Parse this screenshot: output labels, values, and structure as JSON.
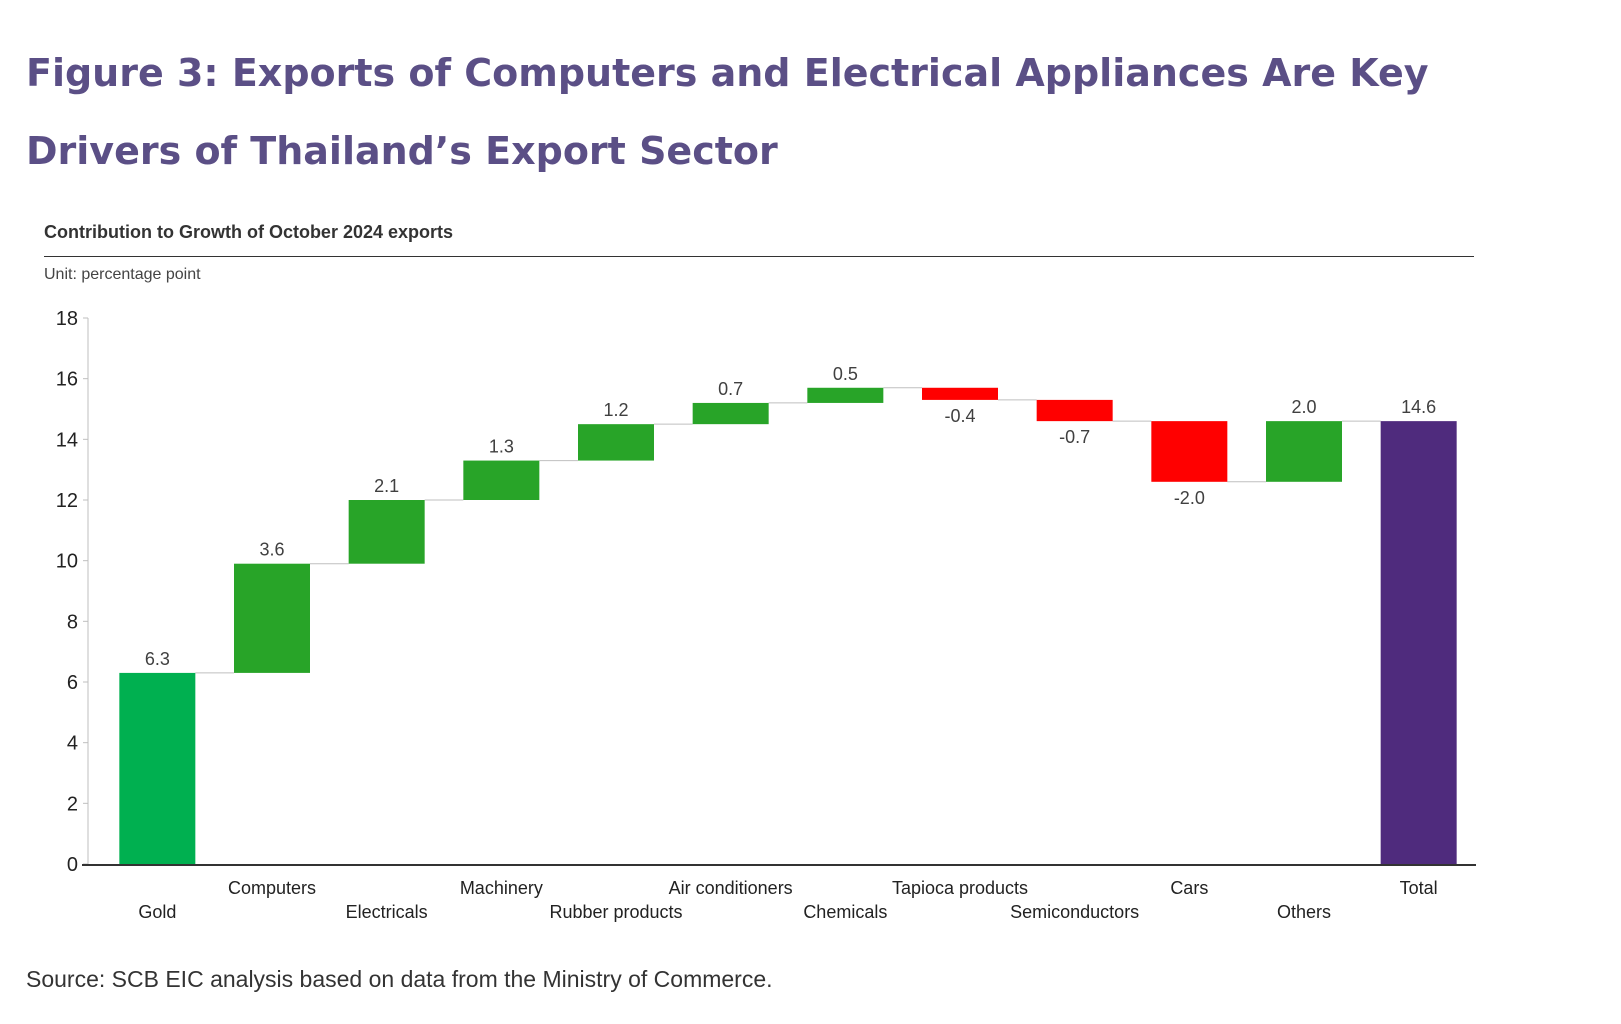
{
  "figure": {
    "title": "Figure 3: Exports of Computers and Electrical Appliances Are Key Drivers of Thailand’s Export Sector",
    "source": "Source: SCB EIC analysis based on data from the Ministry of Commerce."
  },
  "chart_data": {
    "type": "waterfall",
    "title": "Contribution to Growth of October 2024 exports",
    "unit": "Unit: percentage point",
    "xlabel": "",
    "ylabel": "",
    "ylim": [
      0,
      18
    ],
    "yticks": [
      0,
      2,
      4,
      6,
      8,
      10,
      12,
      14,
      16,
      18
    ],
    "categories": [
      "Gold",
      "Computers",
      "Electricals",
      "Machinery",
      "Rubber products",
      "Air conditioners",
      "Chemicals",
      "Tapioca products",
      "Semiconductors",
      "Cars",
      "Others",
      "Total"
    ],
    "values": [
      6.3,
      3.6,
      2.1,
      1.3,
      1.2,
      0.7,
      0.5,
      -0.4,
      -0.7,
      -2.0,
      2.0,
      14.6
    ],
    "labels": [
      "6.3",
      "3.6",
      "2.1",
      "1.3",
      "1.2",
      "0.7",
      "0.5",
      "-0.4",
      "-0.7",
      "-2.0",
      "2.0",
      "14.6"
    ],
    "is_total": [
      false,
      false,
      false,
      false,
      false,
      false,
      false,
      false,
      false,
      false,
      false,
      true
    ],
    "colors": {
      "first": "#00b050",
      "increase": "#28a428",
      "decrease": "#ff0000",
      "total": "#4f2b7d",
      "connector": "#bfbfbf",
      "axis": "#333333",
      "title": "#5b4f86"
    },
    "grid": false,
    "legend": "none"
  }
}
